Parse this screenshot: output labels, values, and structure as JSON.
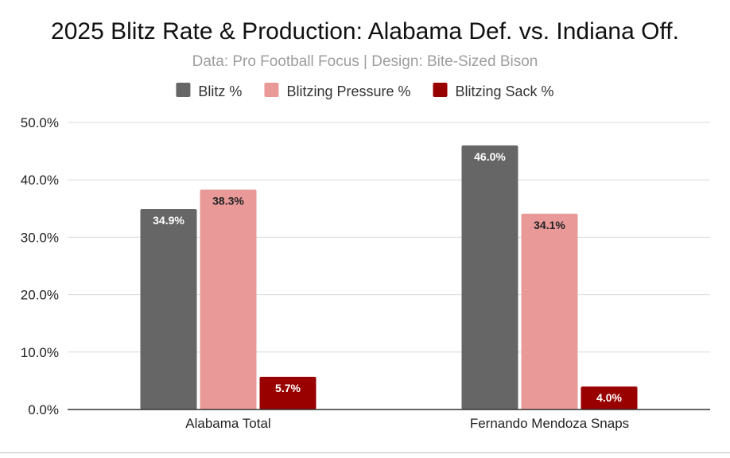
{
  "chart_data": {
    "type": "bar",
    "title": "2025 Blitz Rate & Production: Alabama Def. vs. Indiana Off.",
    "subtitle": "Data: Pro Football Focus | Design: Bite-Sized Bison",
    "xlabel": "",
    "ylabel": "",
    "categories": [
      "Alabama Total",
      "Fernando Mendoza Snaps"
    ],
    "series": [
      {
        "name": "Blitz %",
        "values": [
          34.9,
          46.0
        ],
        "color": "#666666",
        "label_color": "#ffffff",
        "labels": [
          "34.9%",
          "46.0%"
        ]
      },
      {
        "name": "Blitzing Pressure %",
        "values": [
          38.3,
          34.1
        ],
        "color": "#ea9999",
        "label_color": "#222222",
        "labels": [
          "38.3%",
          "34.1%"
        ]
      },
      {
        "name": "Blitzing Sack %",
        "values": [
          5.7,
          4.0
        ],
        "color": "#990000",
        "label_color": "#ffffff",
        "labels": [
          "5.7%",
          "4.0%"
        ]
      }
    ],
    "ylim": [
      0,
      50
    ],
    "yticks": [
      0,
      10,
      20,
      30,
      40,
      50
    ],
    "ytick_labels": [
      "0.0%",
      "10.0%",
      "20.0%",
      "30.0%",
      "40.0%",
      "50.0%"
    ],
    "grid": true,
    "legend_position": "top-center"
  }
}
